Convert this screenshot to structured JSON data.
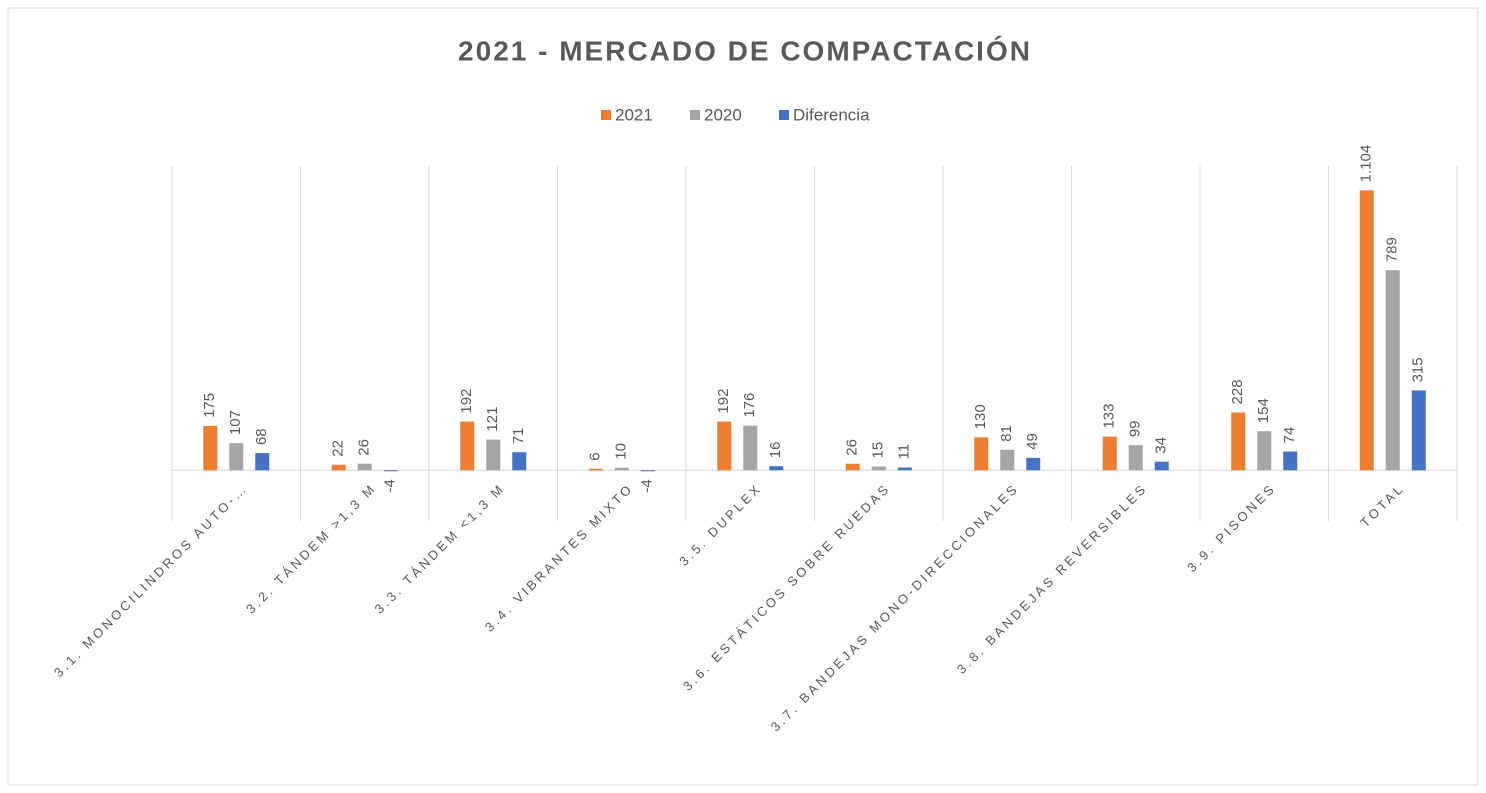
{
  "chart_data": {
    "type": "bar",
    "title": "2021 - MERCADO DE COMPACTACIÓN",
    "categories": [
      "3.1. MONOCILINDROS AUTO-…",
      "3.2. TÁNDEM >1,3 M",
      "3.3. TÁNDEM <1,3 M",
      "3.4. VIBRANTES MIXTO",
      "3.5. DUPLEX",
      "3.6. ESTÁTICOS SOBRE RUEDAS",
      "3.7. BANDEJAS MONO-DIRECCIONALES",
      "3.8. BANDEJAS REVERSIBLES",
      "3.9. PISONES",
      "TOTAL"
    ],
    "series": [
      {
        "name": "2021",
        "color": "#ed7d31",
        "values": [
          175,
          22,
          192,
          6,
          192,
          26,
          130,
          133,
          228,
          1104
        ],
        "value_labels": [
          "175",
          "22",
          "192",
          "6",
          "192",
          "26",
          "130",
          "133",
          "228",
          "1.104"
        ]
      },
      {
        "name": "2020",
        "color": "#a5a5a5",
        "values": [
          107,
          26,
          121,
          10,
          176,
          15,
          81,
          99,
          154,
          789
        ]
      },
      {
        "name": "Diferencia",
        "color": "#4472c4",
        "values": [
          68,
          -4,
          71,
          -4,
          16,
          11,
          49,
          34,
          74,
          315
        ]
      }
    ],
    "ylim": [
      -200,
      1200
    ],
    "legend": "top",
    "grid": true
  }
}
